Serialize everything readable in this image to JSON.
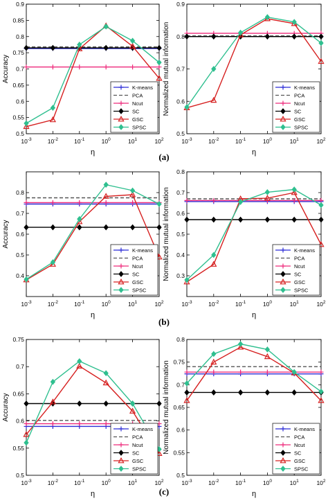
{
  "figure": {
    "panel_labels": [
      "(a)",
      "(b)",
      "(c)"
    ]
  },
  "legend_entries": [
    "K-means",
    "PCA",
    "Ncut",
    "SC",
    "GSC",
    "SPSC"
  ],
  "series_styles": [
    {
      "name": "K-means",
      "color": "#2b2bd6",
      "dash": "",
      "marker": "plus"
    },
    {
      "name": "PCA",
      "color": "#555555",
      "dash": "5,3",
      "marker": "none"
    },
    {
      "name": "Ncut",
      "color": "#ee2a7b",
      "dash": "",
      "marker": "plus"
    },
    {
      "name": "SC",
      "color": "#000000",
      "dash": "",
      "marker": "diamond"
    },
    {
      "name": "GSC",
      "color": "#d62020",
      "dash": "",
      "marker": "triangle"
    },
    {
      "name": "SPSC",
      "color": "#2fbf8f",
      "dash": "",
      "marker": "diamond"
    }
  ],
  "chart_data": [
    {
      "type": "line",
      "panel": "(a)",
      "xlabel": "η",
      "ylabel": "Accuracy",
      "x": [
        -3,
        -2,
        -1,
        0,
        1,
        2
      ],
      "x_scale": "log",
      "xlim": [
        -3,
        2
      ],
      "xticks": [
        "10-3",
        "10-2",
        "10-1",
        "100",
        "101",
        "102"
      ],
      "ylim": [
        0.5,
        0.9
      ],
      "yticks": [
        "0.5",
        "0.55",
        "0.6",
        "0.65",
        "0.7",
        "0.75",
        "0.8",
        "0.85",
        "0.9"
      ],
      "grid": false,
      "legend_position": "lower-right",
      "series": [
        {
          "name": "K-means",
          "values": [
            0.763,
            0.763,
            0.763,
            0.763,
            0.763,
            0.763
          ]
        },
        {
          "name": "PCA",
          "values": [
            0.768,
            0.768,
            0.768,
            0.768,
            0.768,
            0.768
          ]
        },
        {
          "name": "Ncut",
          "values": [
            0.706,
            0.706,
            0.706,
            0.706,
            0.706,
            0.706
          ]
        },
        {
          "name": "SC",
          "values": [
            0.765,
            0.765,
            0.765,
            0.765,
            0.765,
            0.765
          ]
        },
        {
          "name": "GSC",
          "values": [
            0.522,
            0.543,
            0.762,
            0.833,
            0.77,
            0.671
          ]
        },
        {
          "name": "SPSC",
          "values": [
            0.532,
            0.58,
            0.775,
            0.831,
            0.787,
            0.72
          ]
        }
      ]
    },
    {
      "type": "line",
      "panel": "(a)",
      "xlabel": "η",
      "ylabel": "Normalized mutual information",
      "x": [
        -3,
        -2,
        -1,
        0,
        1,
        2
      ],
      "x_scale": "log",
      "xlim": [
        -3,
        2
      ],
      "xticks": [
        "10-3",
        "10-2",
        "10-1",
        "100",
        "101",
        "102"
      ],
      "ylim": [
        0.5,
        0.9
      ],
      "yticks": [
        "0.5",
        "0.6",
        "0.7",
        "0.8",
        "0.9"
      ],
      "grid": false,
      "legend_position": "lower-right",
      "series": [
        {
          "name": "K-means",
          "values": [
            0.8,
            0.8,
            0.8,
            0.8,
            0.8,
            0.8
          ]
        },
        {
          "name": "PCA",
          "values": [
            0.802,
            0.802,
            0.802,
            0.802,
            0.802,
            0.802
          ]
        },
        {
          "name": "Ncut",
          "values": [
            0.81,
            0.81,
            0.81,
            0.81,
            0.81,
            0.81
          ]
        },
        {
          "name": "SC",
          "values": [
            0.8,
            0.8,
            0.8,
            0.8,
            0.8,
            0.8
          ]
        },
        {
          "name": "GSC",
          "values": [
            0.58,
            0.603,
            0.805,
            0.855,
            0.84,
            0.723
          ]
        },
        {
          "name": "SPSC",
          "values": [
            0.582,
            0.7,
            0.812,
            0.86,
            0.845,
            0.78
          ]
        }
      ]
    },
    {
      "type": "line",
      "panel": "(b)",
      "xlabel": "η",
      "ylabel": "Accuracy",
      "x": [
        -3,
        -2,
        -1,
        0,
        1,
        2
      ],
      "x_scale": "log",
      "xlim": [
        -3,
        2
      ],
      "xticks": [
        "10-3",
        "10-2",
        "10-1",
        "100",
        "101",
        "102"
      ],
      "ylim": [
        0.3,
        0.9
      ],
      "yticks": [
        "0.4",
        "0.5",
        "0.6",
        "0.7",
        "0.8"
      ],
      "grid": false,
      "legend_position": "lower-right",
      "series": [
        {
          "name": "K-means",
          "values": [
            0.745,
            0.745,
            0.745,
            0.745,
            0.745,
            0.745
          ]
        },
        {
          "name": "PCA",
          "values": [
            0.775,
            0.775,
            0.775,
            0.775,
            0.775,
            0.775
          ]
        },
        {
          "name": "Ncut",
          "values": [
            0.752,
            0.752,
            0.752,
            0.752,
            0.752,
            0.752
          ]
        },
        {
          "name": "SC",
          "values": [
            0.633,
            0.633,
            0.633,
            0.633,
            0.633,
            0.633
          ]
        },
        {
          "name": "GSC",
          "values": [
            0.38,
            0.455,
            0.66,
            0.782,
            0.79,
            0.49
          ]
        },
        {
          "name": "SPSC",
          "values": [
            0.383,
            0.465,
            0.673,
            0.838,
            0.81,
            0.745
          ]
        }
      ]
    },
    {
      "type": "line",
      "panel": "(b)",
      "xlabel": "η",
      "ylabel": "Normalized mutual information",
      "x": [
        -3,
        -2,
        -1,
        0,
        1,
        2
      ],
      "x_scale": "log",
      "xlim": [
        -3,
        2
      ],
      "xticks": [
        "10-3",
        "10-2",
        "10-1",
        "100",
        "101",
        "102"
      ],
      "ylim": [
        0.2,
        0.8
      ],
      "yticks": [
        "0.3",
        "0.4",
        "0.5",
        "0.6",
        "0.7",
        "0.8"
      ],
      "grid": false,
      "legend_position": "lower-right",
      "series": [
        {
          "name": "K-means",
          "values": [
            0.657,
            0.657,
            0.657,
            0.657,
            0.657,
            0.657
          ]
        },
        {
          "name": "PCA",
          "values": [
            0.67,
            0.67,
            0.67,
            0.67,
            0.67,
            0.67
          ]
        },
        {
          "name": "Ncut",
          "values": [
            0.662,
            0.662,
            0.662,
            0.662,
            0.662,
            0.662
          ]
        },
        {
          "name": "SC",
          "values": [
            0.57,
            0.57,
            0.57,
            0.57,
            0.57,
            0.57
          ]
        },
        {
          "name": "GSC",
          "values": [
            0.27,
            0.355,
            0.67,
            0.673,
            0.7,
            0.45
          ]
        },
        {
          "name": "SPSC",
          "values": [
            0.28,
            0.4,
            0.655,
            0.702,
            0.715,
            0.64
          ]
        }
      ]
    },
    {
      "type": "line",
      "panel": "(c)",
      "xlabel": "η",
      "ylabel": "Accuracy",
      "x": [
        -3,
        -2,
        -1,
        0,
        1,
        2
      ],
      "x_scale": "log",
      "xlim": [
        -3,
        2
      ],
      "xticks": [
        "10-3",
        "10-2",
        "10-1",
        "100",
        "101",
        "102"
      ],
      "ylim": [
        0.5,
        0.75
      ],
      "yticks": [
        "0.5",
        "0.55",
        "0.6",
        "0.65",
        "0.7",
        "0.75"
      ],
      "grid": false,
      "legend_position": "lower-right",
      "series": [
        {
          "name": "K-means",
          "values": [
            0.59,
            0.59,
            0.59,
            0.59,
            0.59,
            0.59
          ]
        },
        {
          "name": "PCA",
          "values": [
            0.601,
            0.601,
            0.601,
            0.601,
            0.601,
            0.601
          ]
        },
        {
          "name": "Ncut",
          "values": [
            0.595,
            0.595,
            0.595,
            0.595,
            0.595,
            0.595
          ]
        },
        {
          "name": "SC",
          "values": [
            0.632,
            0.632,
            0.632,
            0.632,
            0.632,
            0.632
          ]
        },
        {
          "name": "GSC",
          "values": [
            0.575,
            0.635,
            0.701,
            0.67,
            0.618,
            0.54
          ]
        },
        {
          "name": "SPSC",
          "values": [
            0.56,
            0.672,
            0.71,
            0.688,
            0.632,
            0.548
          ]
        }
      ]
    },
    {
      "type": "line",
      "panel": "(c)",
      "xlabel": "η",
      "ylabel": "Normalized mutual information",
      "x": [
        -3,
        -2,
        -1,
        0,
        1,
        2
      ],
      "x_scale": "log",
      "xlim": [
        -3,
        2
      ],
      "xticks": [
        "10-3",
        "10-2",
        "10-1",
        "100",
        "101",
        "102"
      ],
      "ylim": [
        0.5,
        0.8
      ],
      "yticks": [
        "0.5",
        "0.55",
        "0.6",
        "0.65",
        "0.7",
        "0.75",
        "0.8"
      ],
      "grid": false,
      "legend_position": "lower-right",
      "series": [
        {
          "name": "K-means",
          "values": [
            0.724,
            0.724,
            0.724,
            0.724,
            0.724,
            0.724
          ]
        },
        {
          "name": "PCA",
          "values": [
            0.74,
            0.74,
            0.74,
            0.74,
            0.74,
            0.74
          ]
        },
        {
          "name": "Ncut",
          "values": [
            0.728,
            0.728,
            0.728,
            0.728,
            0.728,
            0.728
          ]
        },
        {
          "name": "SC",
          "values": [
            0.683,
            0.683,
            0.683,
            0.683,
            0.683,
            0.683
          ]
        },
        {
          "name": "GSC",
          "values": [
            0.665,
            0.75,
            0.783,
            0.762,
            0.726,
            0.665
          ]
        },
        {
          "name": "SPSC",
          "values": [
            0.703,
            0.768,
            0.79,
            0.778,
            0.728,
            0.685
          ]
        }
      ]
    }
  ]
}
